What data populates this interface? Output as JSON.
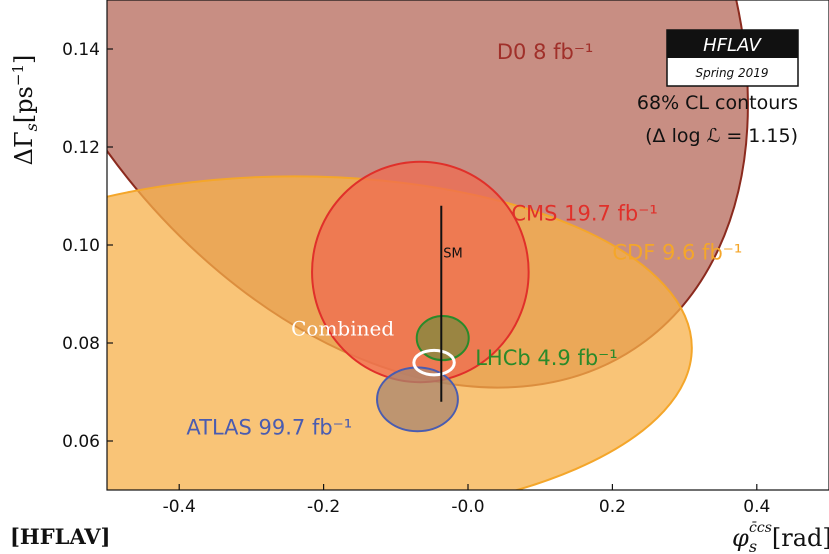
{
  "chart_data": {
    "type": "contour",
    "xlabel": "φ_s^{c̄cs}[rad]",
    "ylabel": "ΔΓ_s[ps^-1]",
    "xlim": [
      -0.5,
      0.5
    ],
    "ylim": [
      0.05,
      0.15
    ],
    "x_ticks": [
      "-0.4",
      "-0.2",
      "-0.0",
      "0.2",
      "0.4"
    ],
    "x_tick_values": [
      -0.4,
      -0.2,
      0.0,
      0.2,
      0.4
    ],
    "y_ticks": [
      "0.06",
      "0.08",
      "0.10",
      "0.12",
      "0.14"
    ],
    "y_tick_values": [
      0.06,
      0.08,
      0.1,
      0.12,
      0.14
    ],
    "contour_level": "68% CL contours",
    "contour_formula": "(Δ log ℒ = 1.15)",
    "badge_title": "HFLAV",
    "badge_subtitle": "Spring 2019",
    "watermark": "[HFLAV]",
    "contours": [
      {
        "name": "D0",
        "label": "D0 8 fb⁻¹",
        "center": [
          -0.14,
          0.159
        ],
        "radii": [
          0.45,
          0.097
        ],
        "rotation_deg": -35,
        "fill": "#b5685a",
        "edge": "#8b2a1e",
        "label_color": "#a0302a",
        "label_pos": [
          0.04,
          0.138
        ]
      },
      {
        "name": "CDF",
        "label": "CDF 9.6 fb⁻¹",
        "center": [
          -0.24,
          0.079
        ],
        "radii": [
          0.55,
          0.035
        ],
        "rotation_deg": 0,
        "fill": "#f7b04a",
        "edge": "#f4a62a",
        "label_color": "#f4a62a",
        "label_pos": [
          0.2,
          0.097
        ]
      },
      {
        "name": "CMS",
        "label": "CMS 19.7 fb⁻¹",
        "center": [
          -0.066,
          0.0945
        ],
        "radii": [
          0.15,
          0.0225
        ],
        "rotation_deg": 0,
        "fill": "#ef6b50",
        "edge": "#e0302a",
        "label_color": "#e0302a",
        "label_pos": [
          0.06,
          0.105
        ]
      },
      {
        "name": "ATLAS",
        "label": "ATLAS 99.7 fb⁻¹",
        "center": [
          -0.07,
          0.0685
        ],
        "radii": [
          0.056,
          0.0065
        ],
        "rotation_deg": 0,
        "fill": "#a9866d",
        "edge": "#4a5cb0",
        "label_color": "#4a5cb0",
        "label_pos": [
          -0.39,
          0.0613
        ]
      },
      {
        "name": "LHCb",
        "label": "LHCb 4.9 fb⁻¹",
        "center": [
          -0.035,
          0.081
        ],
        "radii": [
          0.036,
          0.0045
        ],
        "rotation_deg": 0,
        "fill": "#7e8a3e",
        "edge": "#2a8a2a",
        "label_color": "#2a8a2a",
        "label_pos": [
          0.01,
          0.0755
        ]
      },
      {
        "name": "Combined",
        "label": "Combined",
        "center": [
          -0.047,
          0.076
        ],
        "radii": [
          0.028,
          0.0025
        ],
        "rotation_deg": 0,
        "fill": "none",
        "edge": "#ffffff",
        "label_color": "#ffffff",
        "label_pos": [
          -0.245,
          0.0815
        ]
      }
    ],
    "sm_prediction": {
      "label": "SM",
      "x": -0.037,
      "y_range": [
        0.068,
        0.108
      ]
    }
  }
}
